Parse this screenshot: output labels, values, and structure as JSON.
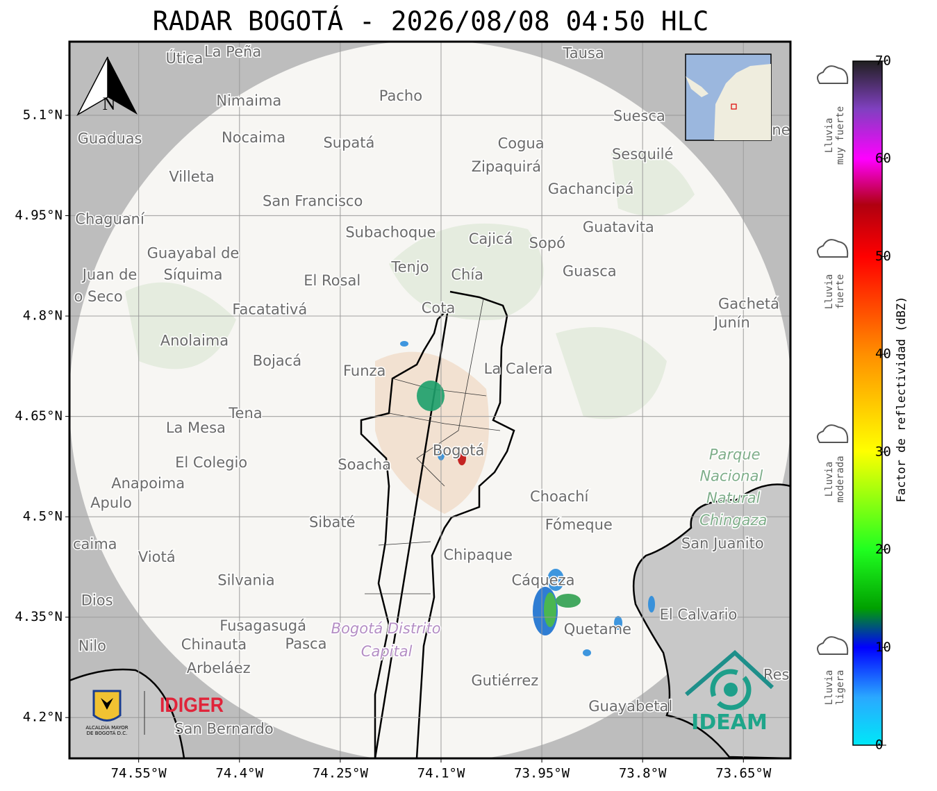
{
  "title": "RADAR BOGOTÁ - 2026/08/08 04:50 HLC",
  "map": {
    "xlim": [
      -74.653,
      -73.58
    ],
    "ylim": [
      4.139,
      5.21
    ],
    "xticks": [
      {
        "value": -74.55,
        "label": "74.55°W"
      },
      {
        "value": -74.4,
        "label": "74.4°W"
      },
      {
        "value": -74.25,
        "label": "74.25°W"
      },
      {
        "value": -74.1,
        "label": "74.1°W"
      },
      {
        "value": -73.95,
        "label": "73.95°W"
      },
      {
        "value": -73.8,
        "label": "73.8°W"
      },
      {
        "value": -73.65,
        "label": "73.65°W"
      }
    ],
    "yticks": [
      {
        "value": 5.1,
        "label": "5.1°N"
      },
      {
        "value": 4.95,
        "label": "4.95°N"
      },
      {
        "value": 4.8,
        "label": "4.8°N"
      },
      {
        "value": 4.65,
        "label": "4.65°N"
      },
      {
        "value": 4.5,
        "label": "4.5°N"
      },
      {
        "value": 4.35,
        "label": "4.35°N"
      },
      {
        "value": 4.2,
        "label": "4.2°N"
      }
    ],
    "grid": true,
    "places": [
      {
        "name": "Útica",
        "lon": -74.482,
        "lat": 5.184
      },
      {
        "name": "La Peña",
        "lon": -74.41,
        "lat": 5.194
      },
      {
        "name": "Tausa",
        "lon": -73.888,
        "lat": 5.192
      },
      {
        "name": "Pacho",
        "lon": -74.16,
        "lat": 5.128
      },
      {
        "name": "Nimaima",
        "lon": -74.386,
        "lat": 5.121
      },
      {
        "name": "Guaduas",
        "lon": -74.593,
        "lat": 5.064
      },
      {
        "name": "Nocaima",
        "lon": -74.379,
        "lat": 5.066
      },
      {
        "name": "Supatá",
        "lon": -74.237,
        "lat": 5.058
      },
      {
        "name": "Suesca",
        "lon": -73.805,
        "lat": 5.098
      },
      {
        "name": "ne",
        "lon": -73.594,
        "lat": 5.077
      },
      {
        "name": "Cogua",
        "lon": -73.981,
        "lat": 5.057
      },
      {
        "name": "Sesquilé",
        "lon": -73.8,
        "lat": 5.041
      },
      {
        "name": "Zipaquirá",
        "lon": -74.003,
        "lat": 5.022
      },
      {
        "name": "Villeta",
        "lon": -74.471,
        "lat": 5.007
      },
      {
        "name": "Gachancipá",
        "lon": -73.877,
        "lat": 4.989
      },
      {
        "name": "San Francisco",
        "lon": -74.291,
        "lat": 4.971
      },
      {
        "name": "Chaguaní",
        "lon": -74.593,
        "lat": 4.944
      },
      {
        "name": "Guatavita",
        "lon": -73.836,
        "lat": 4.932
      },
      {
        "name": "Subachoque",
        "lon": -74.175,
        "lat": 4.924
      },
      {
        "name": "Cajicá",
        "lon": -74.026,
        "lat": 4.914
      },
      {
        "name": "Sopó",
        "lon": -73.942,
        "lat": 4.908
      },
      {
        "name": "Guayabal de",
        "lon": -74.469,
        "lat": 4.893
      },
      {
        "name": "Síquima",
        "lon": -74.469,
        "lat": 4.861
      },
      {
        "name": "Juan de",
        "lon": -74.593,
        "lat": 4.861
      },
      {
        "name": "o Seco",
        "lon": -74.61,
        "lat": 4.828
      },
      {
        "name": "Tenjo",
        "lon": -74.146,
        "lat": 4.872
      },
      {
        "name": "Chía",
        "lon": -74.061,
        "lat": 4.861
      },
      {
        "name": "Guasca",
        "lon": -73.879,
        "lat": 4.866
      },
      {
        "name": "El Rosal",
        "lon": -74.262,
        "lat": 4.852
      },
      {
        "name": "Facatativá",
        "lon": -74.355,
        "lat": 4.809
      },
      {
        "name": "Cota",
        "lon": -74.104,
        "lat": 4.811
      },
      {
        "name": "Gachetá",
        "lon": -73.642,
        "lat": 4.817
      },
      {
        "name": "Junín",
        "lon": -73.667,
        "lat": 4.789
      },
      {
        "name": "Anolaima",
        "lon": -74.467,
        "lat": 4.762
      },
      {
        "name": "Bojacá",
        "lon": -74.344,
        "lat": 4.732
      },
      {
        "name": "Funza",
        "lon": -74.214,
        "lat": 4.717
      },
      {
        "name": "La Calera",
        "lon": -73.985,
        "lat": 4.72
      },
      {
        "name": "Tena",
        "lon": -74.391,
        "lat": 4.654
      },
      {
        "name": "La Mesa",
        "lon": -74.465,
        "lat": 4.632
      },
      {
        "name": "Bogotá",
        "lon": -74.074,
        "lat": 4.598
      },
      {
        "name": "Soacha",
        "lon": -74.214,
        "lat": 4.577
      },
      {
        "name": "El Colegio",
        "lon": -74.442,
        "lat": 4.58
      },
      {
        "name": "Parque",
        "lon": -73.663,
        "lat": 4.592,
        "color": "#7fae8a",
        "italic": true
      },
      {
        "name": "Nacional",
        "lon": -73.668,
        "lat": 4.56,
        "color": "#7fae8a",
        "italic": true
      },
      {
        "name": "Natural",
        "lon": -73.665,
        "lat": 4.527,
        "color": "#7fae8a",
        "italic": true
      },
      {
        "name": "Chingaza",
        "lon": -73.665,
        "lat": 4.494,
        "color": "#7fae8a",
        "italic": true
      },
      {
        "name": "Anapoima",
        "lon": -74.536,
        "lat": 4.549
      },
      {
        "name": "Apulo",
        "lon": -74.591,
        "lat": 4.52
      },
      {
        "name": "Choachí",
        "lon": -73.924,
        "lat": 4.529
      },
      {
        "name": "Sibaté",
        "lon": -74.262,
        "lat": 4.491
      },
      {
        "name": "Fómeque",
        "lon": -73.895,
        "lat": 4.487
      },
      {
        "name": "San Juanito",
        "lon": -73.681,
        "lat": 4.459
      },
      {
        "name": "caima",
        "lon": -74.615,
        "lat": 4.458
      },
      {
        "name": "Viotá",
        "lon": -74.523,
        "lat": 4.439
      },
      {
        "name": "Chipaque",
        "lon": -74.045,
        "lat": 4.442
      },
      {
        "name": "Silvania",
        "lon": -74.39,
        "lat": 4.404
      },
      {
        "name": "Cáqueza",
        "lon": -73.948,
        "lat": 4.404
      },
      {
        "name": "Dios",
        "lon": -74.612,
        "lat": 4.374
      },
      {
        "name": "El Calvario",
        "lon": -73.717,
        "lat": 4.353
      },
      {
        "name": "Fusagasugá",
        "lon": -74.365,
        "lat": 4.336
      },
      {
        "name": "Bogotá Distrito",
        "lon": -74.182,
        "lat": 4.332,
        "color": "#b48ec4",
        "italic": true
      },
      {
        "name": "Capital",
        "lon": -74.181,
        "lat": 4.298,
        "color": "#b48ec4",
        "italic": true
      },
      {
        "name": "Quetame",
        "lon": -73.867,
        "lat": 4.331
      },
      {
        "name": "Nilo",
        "lon": -74.619,
        "lat": 4.306
      },
      {
        "name": "Chinauta",
        "lon": -74.438,
        "lat": 4.308
      },
      {
        "name": "Pasca",
        "lon": -74.301,
        "lat": 4.309
      },
      {
        "name": "Arbeláez",
        "lon": -74.431,
        "lat": 4.273
      },
      {
        "name": "Gutiérrez",
        "lon": -74.005,
        "lat": 4.254
      },
      {
        "name": "Res",
        "lon": -73.601,
        "lat": 4.263
      },
      {
        "name": "Guayabetal",
        "lon": -73.818,
        "lat": 4.216
      },
      {
        "name": "San Bernardo",
        "lon": -74.423,
        "lat": 4.182
      }
    ]
  },
  "compass": "N",
  "logos": {
    "alcaldia": [
      "ALCALDÍA MAYOR",
      "DE BOGOTÁ D.C."
    ],
    "idiger": "IDIGER",
    "ideam": "IDEAM"
  },
  "colorbar": {
    "label": "Factor de reflectividad (dBZ)",
    "lim": [
      0,
      70
    ],
    "ticks": [
      0,
      10,
      20,
      30,
      40,
      50,
      60,
      70
    ]
  },
  "rain_levels": [
    [
      "Lluvia",
      "muy fuerte"
    ],
    [
      "Lluvia",
      "fuerte"
    ],
    [
      "Lluvia",
      "moderada"
    ],
    [
      "Lluvia",
      "ligera"
    ]
  ]
}
